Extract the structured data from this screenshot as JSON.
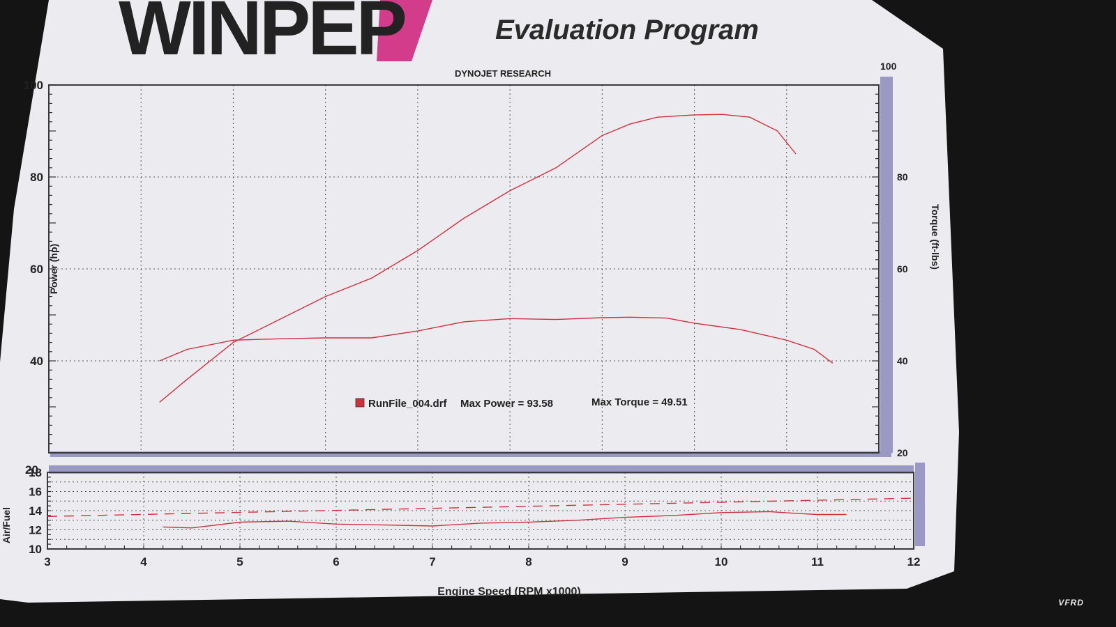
{
  "header": {
    "logo": "WINPEP",
    "title": "Evaluation Program",
    "subtitle": "DYNOJET RESEARCH",
    "corner_right": "100"
  },
  "watermark": "VFRD",
  "legend": {
    "run": "RunFile_004.drf",
    "max_power_label": "Max Power = 93.58",
    "max_torque_label": "Max Torque = 49.51",
    "swatch_color": "#d0303c"
  },
  "chart_data": [
    {
      "type": "line",
      "name": "power-torque",
      "ylabel": "Power (hp)",
      "y2label": "Torque (ft-lbs)",
      "xlim": [
        3,
        12
      ],
      "ylim": [
        20,
        100
      ],
      "y2lim": [
        20,
        100
      ],
      "yticks": [
        "20",
        "40",
        "60",
        "80",
        "100"
      ],
      "y2ticks": [
        "20",
        "40",
        "60",
        "80",
        "100"
      ],
      "grid": true,
      "series": [
        {
          "id": "power",
          "axis": "left",
          "color": "#d0303c",
          "x": [
            4.2,
            4.5,
            5.0,
            5.5,
            6.0,
            6.5,
            7.0,
            7.5,
            8.0,
            8.5,
            9.0,
            9.3,
            9.6,
            10.0,
            10.3,
            10.6,
            10.9,
            11.1
          ],
          "y": [
            31,
            36,
            44,
            49,
            54,
            58,
            64,
            71,
            77,
            82,
            89,
            91.5,
            93,
            93.5,
            93.6,
            93,
            90,
            85
          ]
        },
        {
          "id": "torque",
          "axis": "right",
          "color": "#d0303c",
          "x": [
            4.2,
            4.5,
            5.0,
            5.5,
            6.0,
            6.5,
            7.0,
            7.5,
            8.0,
            8.5,
            9.0,
            9.3,
            9.7,
            10.0,
            10.5,
            11.0,
            11.3,
            11.5
          ],
          "y": [
            40,
            42.5,
            44.5,
            44.8,
            45,
            45,
            46.5,
            48.5,
            49.2,
            49,
            49.4,
            49.5,
            49.3,
            48.2,
            46.8,
            44.5,
            42.5,
            39.5
          ]
        }
      ]
    },
    {
      "type": "line",
      "name": "air-fuel",
      "xlabel": "Engine Speed (RPM x1000)",
      "ylabel": "Air/Fuel",
      "xlim": [
        3,
        12
      ],
      "ylim": [
        10,
        18
      ],
      "xticks": [
        "3",
        "4",
        "5",
        "6",
        "7",
        "8",
        "9",
        "10",
        "11",
        "12"
      ],
      "yticks": [
        "10",
        "12",
        "14",
        "16",
        "18"
      ],
      "extra_left_label": "20",
      "grid": true,
      "series": [
        {
          "id": "afr-target",
          "style": "dashed",
          "color": "#d0303c",
          "x": [
            3,
            12
          ],
          "y": [
            13.4,
            15.3
          ]
        },
        {
          "id": "afr",
          "style": "solid",
          "color": "#d0303c",
          "x": [
            4.2,
            4.5,
            5.0,
            5.5,
            6.0,
            6.5,
            7.0,
            7.5,
            8.0,
            8.5,
            9.0,
            9.5,
            10.0,
            10.5,
            10.8,
            11.0,
            11.3
          ],
          "y": [
            12.3,
            12.2,
            12.8,
            12.9,
            12.6,
            12.5,
            12.4,
            12.7,
            12.8,
            13.0,
            13.3,
            13.5,
            13.8,
            13.9,
            13.7,
            13.6,
            13.6
          ]
        }
      ]
    }
  ]
}
